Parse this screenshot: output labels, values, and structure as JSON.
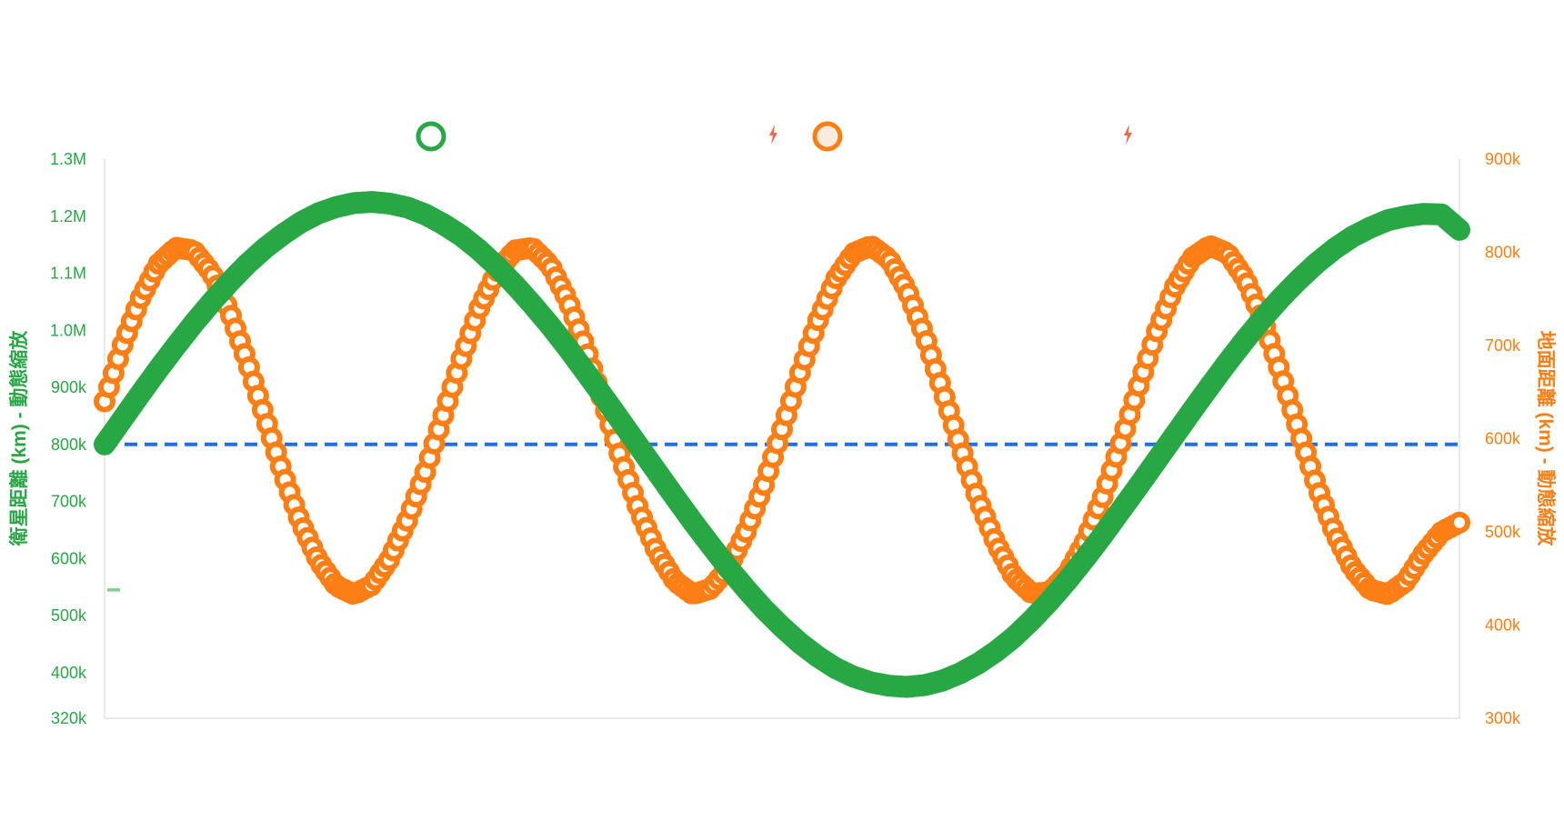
{
  "chart_data": {
    "type": "line",
    "x": [
      0,
      0.5,
      1,
      1.5,
      2,
      2.5,
      3,
      3.5,
      4,
      4.5,
      5,
      5.5,
      6,
      6.5,
      7,
      7.5,
      8,
      8.5,
      9,
      9.5,
      10,
      10.5,
      11,
      11.5,
      12,
      12.5,
      13,
      13.5,
      14,
      14.5,
      15,
      15.5,
      16,
      16.5,
      17,
      17.5,
      18,
      18.5,
      19,
      19.5,
      20,
      20.5,
      21,
      21.5,
      22,
      22.5,
      23,
      23.5,
      24,
      24.5,
      25,
      25.5,
      26,
      26.5,
      27,
      27.5,
      28,
      28.5,
      29,
      29.5,
      30,
      30.5,
      31,
      31.5,
      32,
      32.5,
      33,
      33.5,
      34,
      34.5,
      35,
      35.5,
      36,
      36.5,
      37,
      37.5,
      38
    ],
    "series": [
      {
        "axis": "left",
        "color": "#28a745",
        "style": "thick-line",
        "values": [
          800000,
          844000,
          888000,
          931000,
          972000,
          1012000,
          1049000,
          1084000,
          1116000,
          1144000,
          1168000,
          1189000,
          1205000,
          1216000,
          1223000,
          1225000,
          1222000,
          1215000,
          1203000,
          1186000,
          1166000,
          1141000,
          1112000,
          1080000,
          1045000,
          1008000,
          968000,
          926000,
          883000,
          839000,
          795000,
          751000,
          707000,
          664000,
          623000,
          583000,
          546000,
          511000,
          480000,
          452000,
          428000,
          408000,
          393000,
          383000,
          377000,
          375000,
          378000,
          386000,
          399000,
          416000,
          437000,
          462000,
          492000,
          525000,
          561000,
          600000,
          641000,
          684000,
          727000,
          771000,
          815000,
          859000,
          902000,
          944000,
          984000,
          1022000,
          1057000,
          1089000,
          1118000,
          1143000,
          1164000,
          1180000,
          1193000,
          1200000,
          1204000,
          1203000,
          1176000
        ]
      },
      {
        "axis": "right",
        "color": "#fd7e14",
        "style": "ring-markers",
        "values": [
          640000,
          700000,
          750000,
          787000,
          805000,
          802000,
          778000,
          737000,
          683000,
          623000,
          563000,
          510000,
          469000,
          442000,
          433000,
          443000,
          471000,
          513000,
          565000,
          625000,
          685000,
          739000,
          779000,
          802000,
          805000,
          786000,
          748000,
          697000,
          637000,
          577000,
          522000,
          478000,
          447000,
          433000,
          439000,
          462000,
          501000,
          551000,
          610000,
          670000,
          726000,
          771000,
          799000,
          807000,
          793000,
          760000,
          711000,
          652000,
          592000,
          535000,
          488000,
          452000,
          434000,
          435000,
          455000,
          490000,
          538000,
          595000,
          656000,
          714000,
          762000,
          794000,
          807000,
          799000,
          771000,
          726000,
          669000,
          608000,
          549000,
          499000,
          461000,
          438000,
          433000,
          447000,
          477000,
          500000,
          510000
        ]
      }
    ],
    "reference_line": {
      "axis": "left",
      "value": 800000,
      "color": "#1e6fe8",
      "style": "dashed"
    },
    "y_left": {
      "label": "衛星距離 (km) - 動態縮放",
      "ylim": [
        320000,
        1300000
      ],
      "ticks": [
        320000,
        400000,
        500000,
        600000,
        700000,
        800000,
        900000,
        1000000,
        1100000,
        1200000,
        1300000
      ],
      "tick_labels": [
        "320k",
        "400k",
        "500k",
        "600k",
        "700k",
        "800k",
        "900k",
        "1.0M",
        "1.1M",
        "1.2M",
        "1.3M"
      ]
    },
    "y_right": {
      "label": "地面距離 (km) - 動態縮放",
      "ylim": [
        300000,
        900000
      ],
      "ticks": [
        300000,
        400000,
        500000,
        600000,
        700000,
        800000,
        900000
      ],
      "tick_labels": [
        "300k",
        "400k",
        "500k",
        "600k",
        "700k",
        "800k",
        "900k"
      ]
    },
    "grid": false,
    "legend": {
      "position": "top-center",
      "items": [
        {
          "marker": "ring",
          "color": "#28a745",
          "fill": "#ffffff"
        },
        {
          "marker": "lightning-icon",
          "color": "#f06a4e"
        },
        {
          "marker": "ring",
          "color": "#fd7e14",
          "fill": "#fdebe0"
        },
        {
          "marker": "lightning-icon",
          "color": "#f06a4e"
        }
      ]
    },
    "stray_mark": {
      "color": "#7fcf95",
      "axis": "left",
      "value": 545000
    }
  }
}
